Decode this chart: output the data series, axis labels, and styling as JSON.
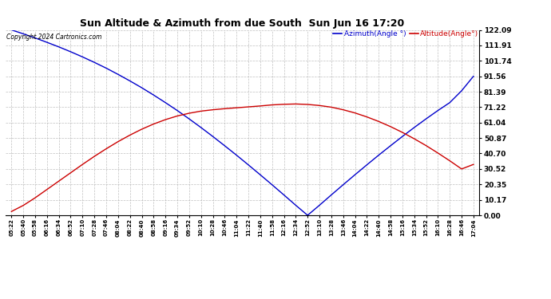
{
  "title": "Sun Altitude & Azimuth from due South  Sun Jun 16 17:20",
  "copyright": "Copyright 2024 Cartronics.com",
  "legend_azimuth": "Azimuth(Angle °)",
  "legend_altitude": "Altitude(Angle°)",
  "azimuth_color": "#0000cc",
  "altitude_color": "#cc0000",
  "background_color": "#ffffff",
  "grid_color": "#b0b0b0",
  "ymin": 0.0,
  "ymax": 122.09,
  "yticks": [
    0.0,
    10.17,
    20.35,
    30.52,
    40.7,
    50.87,
    61.04,
    71.22,
    81.39,
    91.56,
    101.74,
    111.91,
    122.09
  ],
  "xtick_labels": [
    "05:22",
    "05:40",
    "05:58",
    "06:16",
    "06:34",
    "06:52",
    "07:10",
    "07:28",
    "07:46",
    "08:04",
    "08:22",
    "08:40",
    "08:58",
    "09:16",
    "09:34",
    "09:52",
    "10:10",
    "10:28",
    "10:46",
    "11:04",
    "11:22",
    "11:40",
    "11:58",
    "12:16",
    "12:34",
    "12:52",
    "13:10",
    "13:28",
    "13:46",
    "14:04",
    "14:22",
    "14:40",
    "14:58",
    "15:16",
    "15:34",
    "15:52",
    "16:10",
    "16:28",
    "16:46",
    "17:04"
  ],
  "azimuth_values": [
    122.09,
    119.5,
    116.8,
    113.9,
    110.9,
    107.7,
    104.3,
    100.7,
    96.9,
    92.8,
    88.5,
    84.0,
    79.2,
    74.2,
    69.0,
    63.5,
    57.8,
    51.9,
    45.8,
    39.6,
    33.2,
    26.7,
    20.1,
    13.4,
    6.6,
    0.0,
    6.6,
    13.4,
    20.1,
    26.7,
    33.2,
    39.6,
    45.8,
    51.9,
    57.8,
    63.5,
    69.0,
    74.2,
    82.0,
    91.56
  ],
  "altitude_values": [
    2.5,
    6.5,
    11.5,
    17.0,
    22.5,
    28.0,
    33.5,
    38.8,
    43.8,
    48.5,
    52.8,
    56.7,
    60.1,
    63.0,
    65.4,
    67.2,
    68.6,
    69.5,
    70.2,
    70.8,
    71.4,
    72.0,
    72.7,
    73.1,
    73.3,
    73.0,
    72.3,
    71.2,
    69.5,
    67.4,
    64.8,
    61.8,
    58.4,
    54.6,
    50.4,
    45.9,
    41.0,
    35.9,
    30.5,
    33.5
  ]
}
